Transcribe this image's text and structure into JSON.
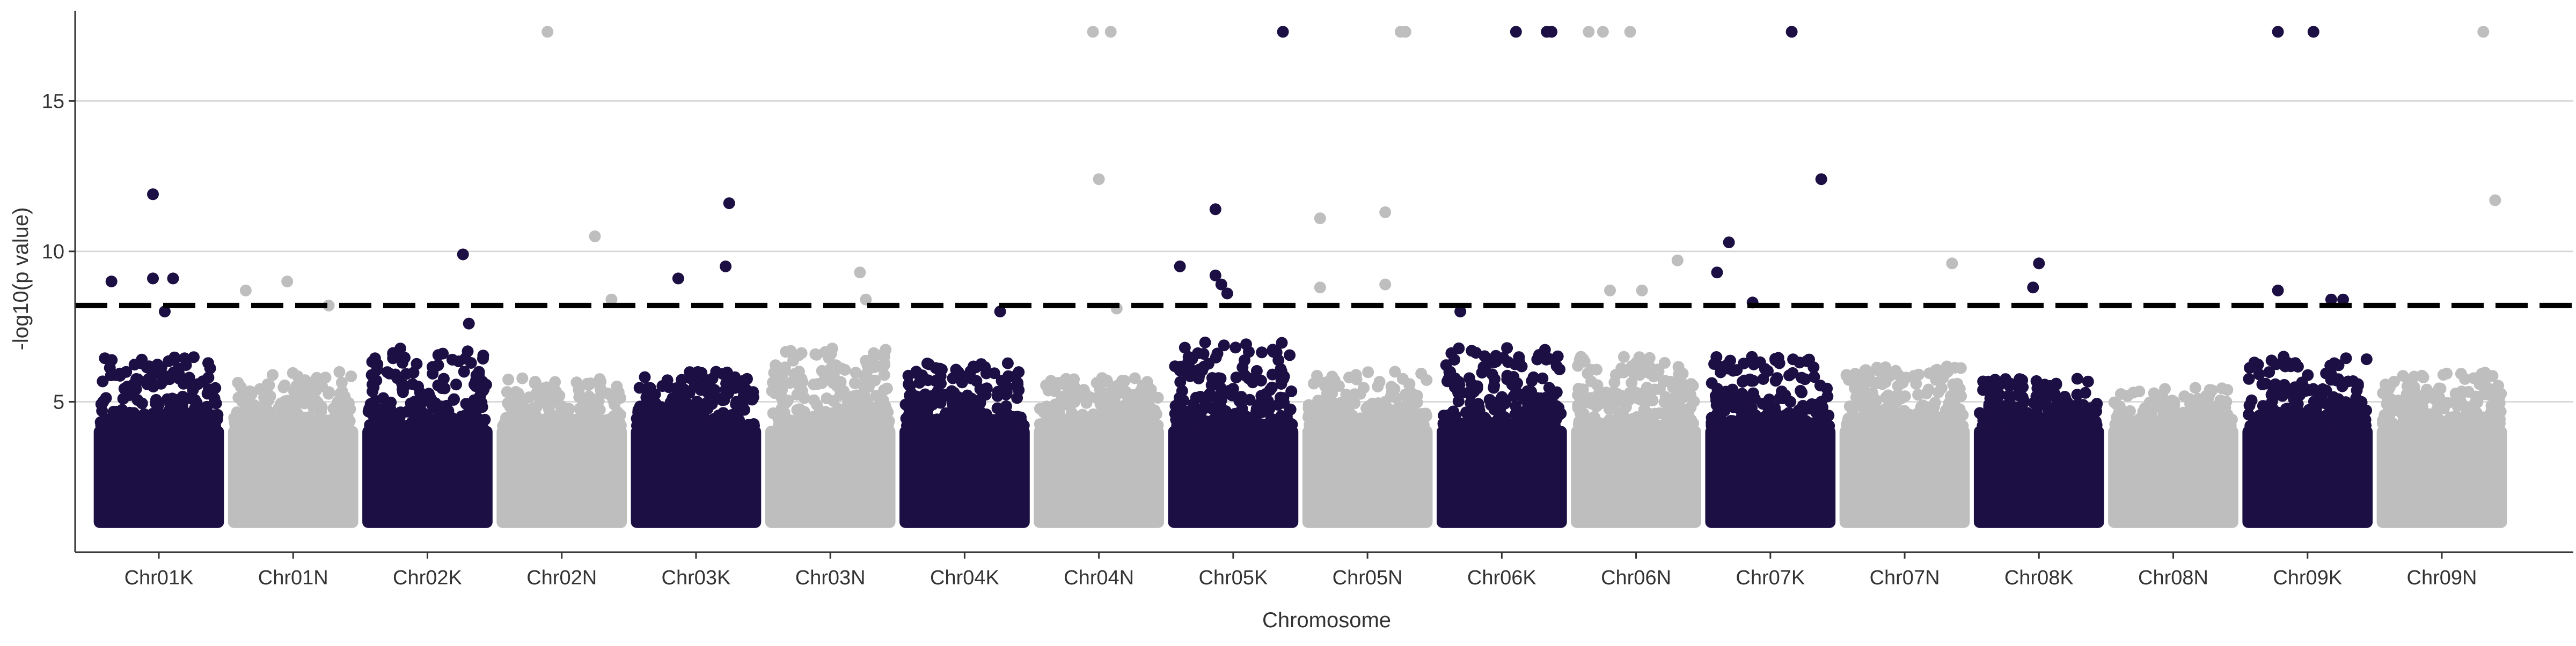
{
  "chart_data": {
    "type": "scatter",
    "subtype": "manhattan",
    "title": "",
    "xlabel": "Chromosome",
    "ylabel": "-log10(p value)",
    "ylim": [
      0,
      18
    ],
    "yticks": [
      5,
      10,
      15
    ],
    "grid": "horizontal major lines only",
    "threshold": 8.2,
    "threshold_style": "dashed black line",
    "baseline": 1.0,
    "colors": {
      "dark": "#1c0f43",
      "light": "#bebebe",
      "threshold": "#000000",
      "grid": "#d3d3d3"
    },
    "categories": [
      "Chr01K",
      "Chr01N",
      "Chr02K",
      "Chr02N",
      "Chr03K",
      "Chr03N",
      "Chr04K",
      "Chr04N",
      "Chr05K",
      "Chr05N",
      "Chr06K",
      "Chr06N",
      "Chr07K",
      "Chr07N",
      "Chr08K",
      "Chr08N",
      "Chr09K",
      "Chr09N"
    ],
    "series_colors_by_chromosome": [
      "dark",
      "light",
      "dark",
      "light",
      "dark",
      "light",
      "dark",
      "light",
      "dark",
      "light",
      "dark",
      "light",
      "dark",
      "light",
      "dark",
      "light",
      "dark",
      "light"
    ],
    "bulk_max": [
      6.5,
      6.0,
      6.8,
      5.8,
      6.0,
      6.8,
      6.3,
      5.8,
      7.0,
      6.0,
      6.8,
      6.5,
      6.5,
      6.2,
      5.8,
      5.5,
      6.5,
      6.0
    ],
    "notable_points": [
      {
        "chr": "Chr01K",
        "pos": 0.1,
        "y": 9.0
      },
      {
        "chr": "Chr01K",
        "pos": 0.45,
        "y": 11.9
      },
      {
        "chr": "Chr01K",
        "pos": 0.45,
        "y": 9.1
      },
      {
        "chr": "Chr01K",
        "pos": 0.62,
        "y": 9.1
      },
      {
        "chr": "Chr01K",
        "pos": 0.55,
        "y": 8.0
      },
      {
        "chr": "Chr01N",
        "pos": 0.1,
        "y": 8.7
      },
      {
        "chr": "Chr01N",
        "pos": 0.45,
        "y": 9.0
      },
      {
        "chr": "Chr01N",
        "pos": 0.8,
        "y": 8.2
      },
      {
        "chr": "Chr02K",
        "pos": 0.8,
        "y": 9.9
      },
      {
        "chr": "Chr02K",
        "pos": 0.85,
        "y": 7.6
      },
      {
        "chr": "Chr02N",
        "pos": 0.38,
        "y": 17.3
      },
      {
        "chr": "Chr02N",
        "pos": 0.78,
        "y": 10.5
      },
      {
        "chr": "Chr02N",
        "pos": 0.92,
        "y": 8.4
      },
      {
        "chr": "Chr03K",
        "pos": 0.35,
        "y": 9.1
      },
      {
        "chr": "Chr03K",
        "pos": 0.75,
        "y": 9.5
      },
      {
        "chr": "Chr03K",
        "pos": 0.78,
        "y": 11.6
      },
      {
        "chr": "Chr03N",
        "pos": 0.75,
        "y": 9.3
      },
      {
        "chr": "Chr03N",
        "pos": 0.8,
        "y": 8.4
      },
      {
        "chr": "Chr04K",
        "pos": 0.8,
        "y": 8.0
      },
      {
        "chr": "Chr04N",
        "pos": 0.45,
        "y": 17.3
      },
      {
        "chr": "Chr04N",
        "pos": 0.6,
        "y": 17.3
      },
      {
        "chr": "Chr04N",
        "pos": 0.5,
        "y": 12.4
      },
      {
        "chr": "Chr04N",
        "pos": 0.65,
        "y": 8.1
      },
      {
        "chr": "Chr05K",
        "pos": 0.05,
        "y": 9.5
      },
      {
        "chr": "Chr05K",
        "pos": 0.35,
        "y": 11.4
      },
      {
        "chr": "Chr05K",
        "pos": 0.35,
        "y": 9.2
      },
      {
        "chr": "Chr05K",
        "pos": 0.4,
        "y": 8.9
      },
      {
        "chr": "Chr05K",
        "pos": 0.45,
        "y": 8.6
      },
      {
        "chr": "Chr05K",
        "pos": 0.92,
        "y": 17.3
      },
      {
        "chr": "Chr05N",
        "pos": 0.1,
        "y": 11.1
      },
      {
        "chr": "Chr05N",
        "pos": 0.1,
        "y": 8.8
      },
      {
        "chr": "Chr05N",
        "pos": 0.65,
        "y": 11.3
      },
      {
        "chr": "Chr05N",
        "pos": 0.65,
        "y": 8.9
      },
      {
        "chr": "Chr05N",
        "pos": 0.78,
        "y": 17.3
      },
      {
        "chr": "Chr05N",
        "pos": 0.82,
        "y": 17.3
      },
      {
        "chr": "Chr06K",
        "pos": 0.15,
        "y": 8.0
      },
      {
        "chr": "Chr06K",
        "pos": 0.62,
        "y": 17.3
      },
      {
        "chr": "Chr06K",
        "pos": 0.88,
        "y": 17.3
      },
      {
        "chr": "Chr06K",
        "pos": 0.92,
        "y": 17.3
      },
      {
        "chr": "Chr06N",
        "pos": 0.1,
        "y": 17.3
      },
      {
        "chr": "Chr06N",
        "pos": 0.22,
        "y": 17.3
      },
      {
        "chr": "Chr06N",
        "pos": 0.45,
        "y": 17.3
      },
      {
        "chr": "Chr06N",
        "pos": 0.28,
        "y": 8.7
      },
      {
        "chr": "Chr06N",
        "pos": 0.55,
        "y": 8.7
      },
      {
        "chr": "Chr06N",
        "pos": 0.85,
        "y": 9.7
      },
      {
        "chr": "Chr07K",
        "pos": 0.05,
        "y": 9.3
      },
      {
        "chr": "Chr07K",
        "pos": 0.15,
        "y": 10.3
      },
      {
        "chr": "Chr07K",
        "pos": 0.35,
        "y": 8.3
      },
      {
        "chr": "Chr07K",
        "pos": 0.68,
        "y": 17.3
      },
      {
        "chr": "Chr07K",
        "pos": 0.93,
        "y": 12.4
      },
      {
        "chr": "Chr07N",
        "pos": 0.9,
        "y": 9.6
      },
      {
        "chr": "Chr08K",
        "pos": 0.45,
        "y": 8.8
      },
      {
        "chr": "Chr08K",
        "pos": 0.5,
        "y": 9.6
      },
      {
        "chr": "Chr09K",
        "pos": 0.25,
        "y": 17.3
      },
      {
        "chr": "Chr09K",
        "pos": 0.55,
        "y": 17.3
      },
      {
        "chr": "Chr09K",
        "pos": 0.25,
        "y": 8.7
      },
      {
        "chr": "Chr09K",
        "pos": 0.7,
        "y": 8.4
      },
      {
        "chr": "Chr09K",
        "pos": 0.8,
        "y": 8.4
      },
      {
        "chr": "Chr09N",
        "pos": 0.85,
        "y": 17.3
      },
      {
        "chr": "Chr09N",
        "pos": 0.95,
        "y": 11.7
      }
    ]
  }
}
